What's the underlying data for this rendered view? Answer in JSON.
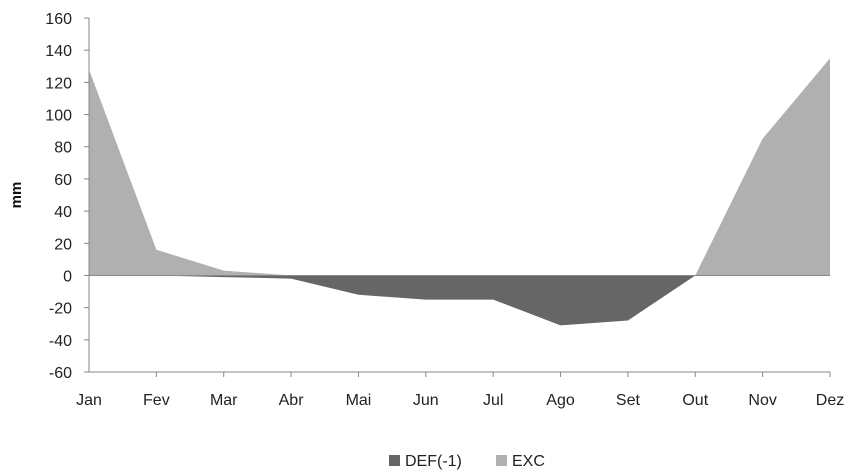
{
  "chart_data": {
    "type": "area",
    "title": "",
    "xlabel": "",
    "ylabel": "mm",
    "categories": [
      "Jan",
      "Fev",
      "Mar",
      "Abr",
      "Mai",
      "Jun",
      "Jul",
      "Ago",
      "Set",
      "Out",
      "Nov",
      "Dez"
    ],
    "ylim": [
      -60,
      160
    ],
    "yticks": [
      160,
      140,
      120,
      100,
      80,
      60,
      40,
      20,
      0,
      -20,
      -40,
      -60
    ],
    "grid": false,
    "legend_position": "bottom",
    "series": [
      {
        "name": "DEF(-1)",
        "color": "#666666",
        "values": [
          0,
          0,
          -1,
          -2,
          -12,
          -15,
          -15,
          -31,
          -28,
          0,
          0,
          0
        ]
      },
      {
        "name": "EXC",
        "color": "#b0b0b0",
        "values": [
          128,
          16,
          3,
          0,
          0,
          0,
          0,
          0,
          0,
          0,
          85,
          135
        ]
      }
    ]
  }
}
